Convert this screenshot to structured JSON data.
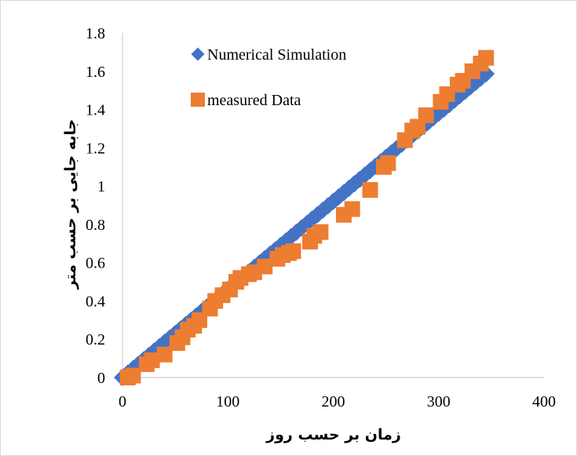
{
  "chart_data": {
    "type": "scatter",
    "title": "",
    "xlabel": "زمان بر حسب روز",
    "ylabel": "جابه جایی بر حسب متر",
    "xlim": [
      0,
      400
    ],
    "ylim": [
      0,
      1.8
    ],
    "x_ticks": [
      "0",
      "100",
      "200",
      "300",
      "400"
    ],
    "y_ticks": [
      "0",
      "0.2",
      "0.4",
      "0.6",
      "0.8",
      "1",
      "1.2",
      "1.4",
      "1.6",
      "1.8"
    ],
    "grid": false,
    "legend_position": "top-left",
    "series": [
      {
        "name": "Numerical Simulation",
        "marker": "diamond",
        "color": "#4472c4",
        "x": [
          0,
          5,
          10,
          15,
          20,
          25,
          30,
          35,
          40,
          45,
          50,
          55,
          60,
          65,
          70,
          75,
          80,
          85,
          90,
          95,
          100,
          105,
          110,
          115,
          120,
          125,
          130,
          135,
          140,
          145,
          150,
          155,
          160,
          165,
          170,
          175,
          180,
          185,
          190,
          195,
          200,
          205,
          210,
          215,
          220,
          225,
          230,
          235,
          240,
          245,
          250,
          255,
          260,
          265,
          270,
          275,
          280,
          285,
          290,
          295,
          300,
          305,
          310,
          315,
          320,
          325,
          330,
          335,
          340,
          345
        ],
        "y": [
          0,
          0.023,
          0.046,
          0.069,
          0.092,
          0.115,
          0.138,
          0.161,
          0.184,
          0.207,
          0.23,
          0.253,
          0.276,
          0.299,
          0.322,
          0.345,
          0.368,
          0.391,
          0.414,
          0.437,
          0.46,
          0.483,
          0.506,
          0.529,
          0.552,
          0.575,
          0.598,
          0.621,
          0.644,
          0.667,
          0.69,
          0.713,
          0.736,
          0.759,
          0.782,
          0.805,
          0.828,
          0.851,
          0.874,
          0.897,
          0.92,
          0.943,
          0.966,
          0.989,
          1.012,
          1.035,
          1.058,
          1.081,
          1.104,
          1.127,
          1.15,
          1.173,
          1.196,
          1.219,
          1.242,
          1.265,
          1.288,
          1.311,
          1.334,
          1.357,
          1.38,
          1.403,
          1.426,
          1.449,
          1.472,
          1.495,
          1.518,
          1.541,
          1.564,
          1.587
        ]
      },
      {
        "name": "measured Data",
        "marker": "square",
        "color": "#ed7d31",
        "x": [
          5,
          10,
          23,
          28,
          40,
          52,
          57,
          62,
          68,
          73,
          83,
          88,
          95,
          102,
          108,
          112,
          120,
          125,
          135,
          147,
          152,
          158,
          162,
          178,
          182,
          188,
          210,
          218,
          235,
          248,
          252,
          268,
          275,
          280,
          288,
          302,
          308,
          318,
          323,
          332,
          340,
          345
        ],
        "y": [
          0.0,
          0.01,
          0.07,
          0.09,
          0.12,
          0.18,
          0.21,
          0.25,
          0.27,
          0.3,
          0.36,
          0.4,
          0.43,
          0.46,
          0.5,
          0.52,
          0.54,
          0.55,
          0.58,
          0.62,
          0.64,
          0.65,
          0.66,
          0.71,
          0.74,
          0.76,
          0.85,
          0.88,
          0.98,
          1.1,
          1.12,
          1.24,
          1.29,
          1.31,
          1.37,
          1.44,
          1.48,
          1.53,
          1.55,
          1.6,
          1.64,
          1.67
        ]
      }
    ]
  }
}
